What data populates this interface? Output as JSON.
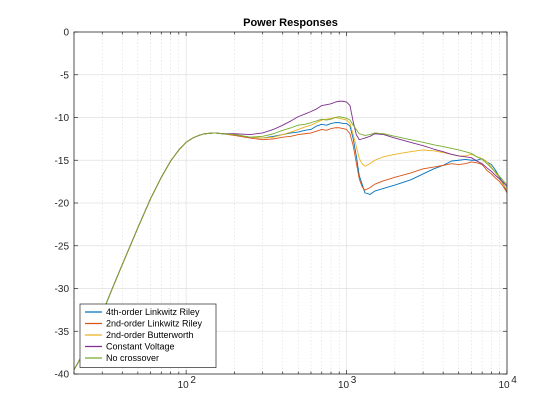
{
  "chart_data": {
    "type": "line",
    "title": "Power Responses",
    "xlabel": "",
    "ylabel": "",
    "xscale": "log",
    "xlim": [
      20,
      10000
    ],
    "ylim": [
      -40,
      0
    ],
    "grid": "on",
    "legend_position": "bottom-left",
    "x_ticks": [
      100,
      1000,
      10000
    ],
    "x_tick_labels": [
      {
        "base": "10",
        "exp": "2"
      },
      {
        "base": "10",
        "exp": "3"
      },
      {
        "base": "10",
        "exp": "4"
      }
    ],
    "y_ticks": [
      0,
      -5,
      -10,
      -15,
      -20,
      -25,
      -30,
      -35,
      -40
    ],
    "y_tick_labels": [
      "0",
      "-5",
      "-10",
      "-15",
      "-20",
      "-25",
      "-30",
      "-35",
      "-40"
    ],
    "series": [
      {
        "name": "4th-order Linkwitz Riley",
        "color": "#0072BD",
        "x": [
          20,
          25,
          30,
          35,
          40,
          50,
          60,
          70,
          80,
          90,
          100,
          110,
          120,
          130,
          150,
          170,
          200,
          250,
          300,
          350,
          400,
          450,
          500,
          550,
          600,
          650,
          700,
          750,
          800,
          850,
          900,
          950,
          1000,
          1050,
          1100,
          1150,
          1200,
          1250,
          1300,
          1400,
          1500,
          1700,
          2000,
          2500,
          3000,
          3500,
          4000,
          4500,
          5000,
          5500,
          6000,
          6500,
          7000,
          7500,
          8000,
          8500,
          9000,
          9500,
          10000
        ],
        "y": [
          -39.5,
          -36.3,
          -32.9,
          -29.8,
          -27.2,
          -22.9,
          -19.5,
          -17.0,
          -15.1,
          -13.8,
          -12.9,
          -12.4,
          -12.1,
          -11.9,
          -11.8,
          -11.9,
          -12.0,
          -12.3,
          -12.4,
          -12.2,
          -12.0,
          -11.8,
          -11.7,
          -11.5,
          -11.4,
          -11.0,
          -10.8,
          -10.9,
          -10.7,
          -10.6,
          -10.6,
          -10.7,
          -10.7,
          -11.0,
          -12.5,
          -14.5,
          -16.8,
          -17.8,
          -18.8,
          -19.0,
          -18.6,
          -18.3,
          -17.9,
          -17.3,
          -16.6,
          -16.0,
          -15.6,
          -15.1,
          -15.0,
          -14.9,
          -15.0,
          -15.0,
          -14.8,
          -15.2,
          -15.5,
          -16.2,
          -17.0,
          -17.8,
          -18.8
        ]
      },
      {
        "name": "2nd-order Linkwitz Riley",
        "color": "#D95319",
        "x": [
          20,
          25,
          30,
          35,
          40,
          50,
          60,
          70,
          80,
          90,
          100,
          110,
          120,
          130,
          150,
          170,
          200,
          250,
          300,
          350,
          400,
          450,
          500,
          550,
          600,
          650,
          700,
          750,
          800,
          850,
          900,
          950,
          1000,
          1050,
          1100,
          1150,
          1200,
          1250,
          1300,
          1400,
          1500,
          1700,
          2000,
          2500,
          3000,
          3500,
          4000,
          4500,
          5000,
          5500,
          6000,
          6500,
          7000,
          7500,
          8000,
          8500,
          9000,
          9500,
          10000
        ],
        "y": [
          -39.5,
          -36.3,
          -32.9,
          -29.8,
          -27.2,
          -22.9,
          -19.5,
          -17.0,
          -15.1,
          -13.8,
          -12.9,
          -12.4,
          -12.1,
          -11.9,
          -11.8,
          -11.9,
          -12.1,
          -12.4,
          -12.6,
          -12.5,
          -12.3,
          -12.2,
          -12.0,
          -11.9,
          -11.8,
          -11.6,
          -11.4,
          -11.5,
          -11.3,
          -11.2,
          -11.2,
          -11.3,
          -11.4,
          -11.9,
          -13.3,
          -15.3,
          -17.2,
          -18.1,
          -18.5,
          -18.2,
          -17.8,
          -17.4,
          -17.0,
          -16.5,
          -16.0,
          -15.8,
          -15.6,
          -15.4,
          -15.5,
          -15.4,
          -15.2,
          -15.3,
          -15.5,
          -16.2,
          -16.6,
          -17.1,
          -17.5,
          -18.1,
          -18.8
        ]
      },
      {
        "name": "2nd-order Butterworth",
        "color": "#EDB120",
        "x": [
          20,
          25,
          30,
          35,
          40,
          50,
          60,
          70,
          80,
          90,
          100,
          110,
          120,
          130,
          150,
          170,
          200,
          250,
          300,
          350,
          400,
          450,
          500,
          550,
          600,
          650,
          700,
          750,
          800,
          850,
          900,
          950,
          1000,
          1050,
          1100,
          1150,
          1200,
          1250,
          1300,
          1400,
          1500,
          1700,
          2000,
          2500,
          3000,
          3500,
          4000,
          4500,
          5000,
          5500,
          6000,
          6500,
          7000,
          7500,
          8000,
          8500,
          9000,
          9500,
          10000
        ],
        "y": [
          -39.5,
          -36.3,
          -32.9,
          -29.8,
          -27.2,
          -22.9,
          -19.5,
          -17.0,
          -15.1,
          -13.8,
          -12.9,
          -12.4,
          -12.1,
          -11.9,
          -11.8,
          -11.9,
          -12.0,
          -12.3,
          -12.4,
          -12.3,
          -12.0,
          -11.7,
          -11.4,
          -11.1,
          -10.9,
          -10.6,
          -10.3,
          -10.2,
          -10.1,
          -10.0,
          -10.1,
          -10.2,
          -10.3,
          -10.7,
          -12.0,
          -13.4,
          -14.8,
          -15.4,
          -15.7,
          -15.4,
          -15.0,
          -14.6,
          -14.3,
          -14.0,
          -13.8,
          -13.9,
          -14.1,
          -14.3,
          -14.5,
          -14.5,
          -14.3,
          -14.6,
          -14.8,
          -15.2,
          -15.8,
          -16.5,
          -17.2,
          -17.9,
          -18.4
        ]
      },
      {
        "name": "Constant Voltage",
        "color": "#7E2F8E",
        "x": [
          20,
          25,
          30,
          35,
          40,
          50,
          60,
          70,
          80,
          90,
          100,
          110,
          120,
          130,
          150,
          170,
          200,
          250,
          300,
          350,
          400,
          450,
          500,
          550,
          600,
          650,
          700,
          750,
          800,
          850,
          900,
          950,
          1000,
          1050,
          1100,
          1150,
          1200,
          1250,
          1300,
          1400,
          1500,
          1700,
          2000,
          2500,
          3000,
          3500,
          4000,
          4500,
          5000,
          5500,
          6000,
          6500,
          7000,
          7500,
          8000,
          8500,
          9000,
          9500,
          10000
        ],
        "y": [
          -39.5,
          -36.3,
          -32.9,
          -29.8,
          -27.2,
          -22.9,
          -19.5,
          -17.0,
          -15.1,
          -13.8,
          -12.9,
          -12.4,
          -12.1,
          -11.9,
          -11.8,
          -11.9,
          -11.9,
          -12.0,
          -11.8,
          -11.4,
          -10.9,
          -10.4,
          -9.9,
          -9.6,
          -9.3,
          -9.0,
          -8.6,
          -8.5,
          -8.4,
          -8.2,
          -8.1,
          -8.1,
          -8.2,
          -8.6,
          -10.5,
          -12.0,
          -12.6,
          -12.5,
          -12.4,
          -12.2,
          -11.9,
          -12.0,
          -12.4,
          -12.9,
          -13.3,
          -13.7,
          -14.0,
          -14.3,
          -14.5,
          -14.6,
          -14.7,
          -15.1,
          -15.4,
          -15.9,
          -16.3,
          -16.8,
          -17.2,
          -17.6,
          -18.1
        ]
      },
      {
        "name": "No crossover",
        "color": "#77AC30",
        "x": [
          20,
          25,
          30,
          35,
          40,
          50,
          60,
          70,
          80,
          90,
          100,
          110,
          120,
          130,
          150,
          170,
          200,
          250,
          300,
          350,
          400,
          450,
          500,
          550,
          600,
          650,
          700,
          750,
          800,
          850,
          900,
          950,
          1000,
          1050,
          1100,
          1150,
          1200,
          1250,
          1300,
          1400,
          1500,
          1700,
          2000,
          2500,
          3000,
          3500,
          4000,
          4500,
          5000,
          5500,
          6000,
          6500,
          7000,
          7500,
          8000,
          8500,
          9000,
          9500,
          10000
        ],
        "y": [
          -39.5,
          -36.3,
          -32.9,
          -29.8,
          -27.2,
          -22.9,
          -19.5,
          -17.0,
          -15.1,
          -13.8,
          -12.9,
          -12.4,
          -12.1,
          -11.9,
          -11.8,
          -11.9,
          -12.0,
          -12.3,
          -12.2,
          -11.9,
          -11.5,
          -11.2,
          -10.9,
          -10.8,
          -10.6,
          -10.4,
          -10.2,
          -10.3,
          -10.2,
          -10.0,
          -9.9,
          -10.0,
          -10.1,
          -10.3,
          -10.9,
          -11.4,
          -11.9,
          -12.0,
          -12.1,
          -12.0,
          -11.8,
          -11.9,
          -12.2,
          -12.6,
          -12.9,
          -13.2,
          -13.4,
          -13.6,
          -13.8,
          -14.0,
          -14.2,
          -14.6,
          -14.9,
          -15.4,
          -15.9,
          -16.4,
          -16.9,
          -17.4,
          -17.9
        ]
      }
    ]
  }
}
